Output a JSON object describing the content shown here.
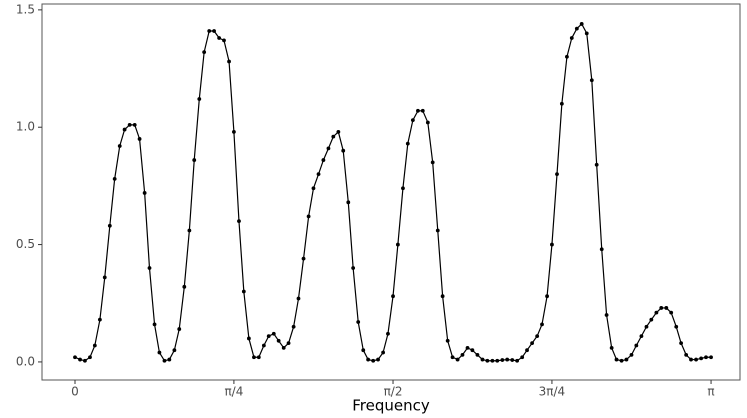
{
  "chart_data": {
    "type": "line",
    "x_label": "Frequency",
    "color": "#000000",
    "markers": true,
    "x": [
      0,
      0.025,
      0.049,
      0.074,
      0.098,
      0.123,
      0.147,
      0.172,
      0.196,
      0.221,
      0.245,
      0.27,
      0.295,
      0.319,
      0.344,
      0.368,
      0.393,
      0.417,
      0.442,
      0.466,
      0.491,
      0.515,
      0.54,
      0.565,
      0.589,
      0.614,
      0.638,
      0.663,
      0.687,
      0.712,
      0.736,
      0.761,
      0.785,
      0.81,
      0.834,
      0.859,
      0.884,
      0.908,
      0.933,
      0.957,
      0.982,
      1.006,
      1.031,
      1.055,
      1.08,
      1.104,
      1.129,
      1.154,
      1.178,
      1.203,
      1.227,
      1.252,
      1.276,
      1.301,
      1.325,
      1.35,
      1.374,
      1.399,
      1.424,
      1.448,
      1.473,
      1.497,
      1.522,
      1.546,
      1.571,
      1.595,
      1.62,
      1.644,
      1.669,
      1.694,
      1.718,
      1.743,
      1.767,
      1.792,
      1.816,
      1.841,
      1.865,
      1.89,
      1.914,
      1.939,
      1.963,
      1.988,
      2.013,
      2.037,
      2.062,
      2.086,
      2.111,
      2.135,
      2.16,
      2.184,
      2.209,
      2.233,
      2.258,
      2.283,
      2.307,
      2.332,
      2.356,
      2.381,
      2.405,
      2.43,
      2.454,
      2.479,
      2.503,
      2.528,
      2.553,
      2.577,
      2.602,
      2.626,
      2.651,
      2.675,
      2.7,
      2.724,
      2.749,
      2.773,
      2.798,
      2.823,
      2.847,
      2.872,
      2.896,
      2.921,
      2.945,
      2.97,
      2.994,
      3.019,
      3.043,
      3.068,
      3.093,
      3.117,
      3.142
    ],
    "values": [
      0.02,
      0.01,
      0.005,
      0.02,
      0.07,
      0.18,
      0.36,
      0.58,
      0.78,
      0.92,
      0.99,
      1.01,
      1.01,
      0.95,
      0.72,
      0.4,
      0.16,
      0.04,
      0.005,
      0.01,
      0.05,
      0.14,
      0.32,
      0.56,
      0.86,
      1.12,
      1.32,
      1.41,
      1.41,
      1.38,
      1.37,
      1.28,
      0.98,
      0.6,
      0.3,
      0.1,
      0.02,
      0.02,
      0.07,
      0.11,
      0.12,
      0.09,
      0.06,
      0.08,
      0.15,
      0.27,
      0.44,
      0.62,
      0.74,
      0.8,
      0.86,
      0.91,
      0.96,
      0.98,
      0.9,
      0.68,
      0.4,
      0.17,
      0.05,
      0.01,
      0.005,
      0.01,
      0.04,
      0.12,
      0.28,
      0.5,
      0.74,
      0.93,
      1.03,
      1.07,
      1.07,
      1.02,
      0.85,
      0.56,
      0.28,
      0.09,
      0.02,
      0.01,
      0.03,
      0.06,
      0.05,
      0.03,
      0.01,
      0.005,
      0.005,
      0.005,
      0.008,
      0.01,
      0.008,
      0.005,
      0.02,
      0.05,
      0.08,
      0.11,
      0.16,
      0.28,
      0.5,
      0.8,
      1.1,
      1.3,
      1.38,
      1.42,
      1.44,
      1.4,
      1.2,
      0.84,
      0.48,
      0.2,
      0.06,
      0.01,
      0.005,
      0.01,
      0.03,
      0.07,
      0.11,
      0.15,
      0.18,
      0.21,
      0.23,
      0.23,
      0.21,
      0.15,
      0.08,
      0.03,
      0.01,
      0.01,
      0.015,
      0.02,
      0.02
    ],
    "xlim": [
      -0.163,
      3.285
    ],
    "ylim": [
      -0.077,
      1.525
    ],
    "xticks": [
      0,
      {
        "value": 0.785,
        "label": "π/4"
      },
      {
        "value": 1.571,
        "label": "π/2"
      },
      {
        "value": 2.356,
        "label": "3π/4"
      },
      {
        "value": 3.142,
        "label": "π"
      }
    ],
    "yticks": [
      {
        "value": 0,
        "label": "0.0"
      },
      0.5,
      {
        "value": 1,
        "label": "1.0"
      },
      1.5
    ],
    "grid": false
  }
}
